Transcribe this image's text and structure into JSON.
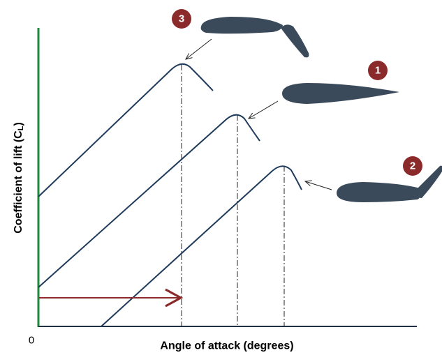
{
  "markers": [
    "3",
    "1",
    "2"
  ],
  "origin_label": "0",
  "y_label": {
    "text": "Coefficient of lift (C",
    "subscript": "L",
    "suffix": ")"
  },
  "x_label": "Angle of attack (degrees)"
}
